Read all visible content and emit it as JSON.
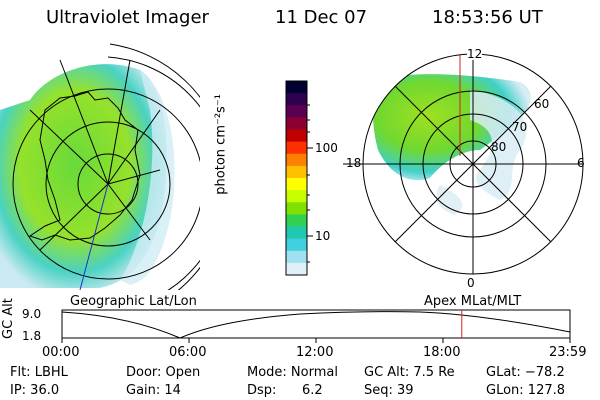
{
  "header": {
    "title": "Ultraviolet Imager",
    "date": "11 Dec 07",
    "time": "18:53:56 UT"
  },
  "colorbar": {
    "unit_label": "photon cm⁻²s⁻¹",
    "tick_labels": [
      "100",
      "10"
    ],
    "colors": [
      "#000030",
      "#300050",
      "#5a0050",
      "#8a0030",
      "#c00000",
      "#ff3000",
      "#ff8000",
      "#ffc000",
      "#ffff00",
      "#c8ff00",
      "#80e000",
      "#30d050",
      "#20c8b0",
      "#40d0e0",
      "#a0e0f0",
      "#e0f0f8"
    ]
  },
  "left_panel": {
    "caption": "Geographic Lat/Lon"
  },
  "right_panel": {
    "caption": "Apex MLat/MLT",
    "mlt_labels": {
      "top": "12",
      "left": "18",
      "right": "6",
      "bottom": "0"
    },
    "lat_labels": [
      "60",
      "70",
      "80"
    ]
  },
  "timeline": {
    "axis_label": "GC Alt",
    "y_ticks": [
      "9.0",
      "1.8"
    ],
    "x_ticks": [
      "00:00",
      "06:00",
      "12:00",
      "18:00",
      "23:59"
    ],
    "current_time_fraction": 0.787
  },
  "status": {
    "filter": "Flt: LBHL",
    "ip": "IP: 36.0",
    "door": "Door: Open",
    "gain": "Gain: 14",
    "mode": "Mode: Normal",
    "dsp_label": "Dsp:",
    "dsp_value": "6.2",
    "gc_alt": "GC Alt: 7.5 Re",
    "seq": "Seq: 39",
    "glat": "GLat: −78.2",
    "glon": "GLon: 127.8"
  }
}
